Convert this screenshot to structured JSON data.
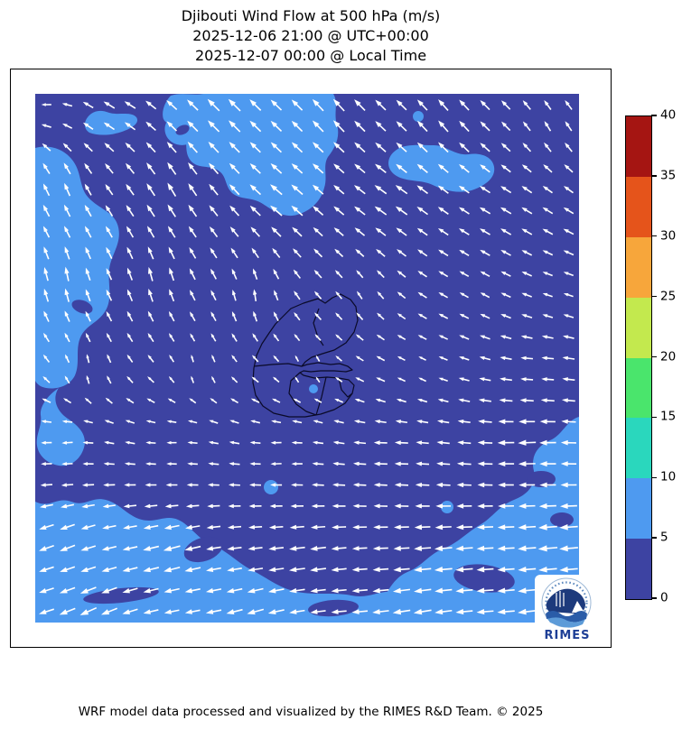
{
  "header": {
    "title_line1": "Djibouti Wind Flow at 500 hPa (m/s)",
    "title_line2": "2025-12-06 21:00 @ UTC+00:00",
    "title_line3": "2025-12-07 00:00 @ Local Time"
  },
  "footer": {
    "caption": "WRF model data processed and visualized by the RIMES R&D Team. © 2025"
  },
  "logo": {
    "brand": "RIMES"
  },
  "chart_data": {
    "type": "heatmap",
    "subtype": "wind-speed-fill-with-quiver-arrows",
    "title": "Djibouti Wind Flow at 500 hPa (m/s)",
    "valid_time_utc": "2025-12-06 21:00 @ UTC+00:00",
    "valid_time_local": "2025-12-07 00:00 @ Local Time",
    "units": "m/s",
    "pressure_level_hPa": 500,
    "region_outline": "Djibouti administrative boundaries with Gulf of Tadjoura",
    "legend_position": "right-colorbar",
    "colorbar": {
      "min": 0,
      "max": 40,
      "ticks": [
        0,
        5,
        10,
        15,
        20,
        25,
        30,
        35,
        40
      ],
      "colors_bottom_to_top": [
        "#3d43a2",
        "#4e9af0",
        "#2ad7bd",
        "#4ae56c",
        "#c3e94e",
        "#f7a63b",
        "#e5541b",
        "#a51512"
      ]
    },
    "speed_classes_visible_on_map": [
      {
        "range_m_s": "0-5",
        "color": "#3d43a2",
        "coverage": "most of domain"
      },
      {
        "range_m_s": "5-10",
        "color": "#4e9af0",
        "coverage": "north-center patch, west strip, south band"
      }
    ],
    "arrow_grid": {
      "cols": 26,
      "rows": 25,
      "arrow_color": "#ffffff"
    },
    "wind_field_control_points_fx_fy_dirdeg_mag": [
      [
        0.02,
        0.02,
        185,
        0.3
      ],
      [
        0.15,
        0.03,
        150,
        0.45
      ],
      [
        0.35,
        0.03,
        135,
        0.65
      ],
      [
        0.55,
        0.03,
        132,
        0.62
      ],
      [
        0.75,
        0.05,
        130,
        0.55
      ],
      [
        0.95,
        0.06,
        120,
        0.38
      ],
      [
        0.05,
        0.18,
        112,
        0.5
      ],
      [
        0.25,
        0.18,
        120,
        0.6
      ],
      [
        0.45,
        0.2,
        140,
        0.6
      ],
      [
        0.65,
        0.2,
        145,
        0.55
      ],
      [
        0.85,
        0.22,
        150,
        0.42
      ],
      [
        0.05,
        0.35,
        100,
        0.55
      ],
      [
        0.22,
        0.35,
        103,
        0.55
      ],
      [
        0.4,
        0.38,
        95,
        0.42
      ],
      [
        0.6,
        0.38,
        120,
        0.28
      ],
      [
        0.8,
        0.38,
        150,
        0.3
      ],
      [
        0.97,
        0.38,
        162,
        0.3
      ],
      [
        0.1,
        0.52,
        95,
        0.26
      ],
      [
        0.3,
        0.52,
        90,
        0.18
      ],
      [
        0.5,
        0.52,
        90,
        0.12
      ],
      [
        0.7,
        0.52,
        150,
        0.18
      ],
      [
        0.92,
        0.52,
        178,
        0.42
      ],
      [
        0.05,
        0.66,
        186,
        0.35
      ],
      [
        0.25,
        0.66,
        183,
        0.3
      ],
      [
        0.45,
        0.68,
        185,
        0.35
      ],
      [
        0.65,
        0.68,
        180,
        0.5
      ],
      [
        0.9,
        0.66,
        183,
        0.7
      ],
      [
        0.05,
        0.85,
        202,
        0.62
      ],
      [
        0.25,
        0.87,
        196,
        0.68
      ],
      [
        0.5,
        0.88,
        188,
        0.62
      ],
      [
        0.75,
        0.88,
        185,
        0.7
      ],
      [
        0.95,
        0.85,
        185,
        0.76
      ],
      [
        0.1,
        0.98,
        205,
        0.7
      ],
      [
        0.4,
        0.98,
        196,
        0.66
      ],
      [
        0.7,
        0.98,
        190,
        0.7
      ],
      [
        0.95,
        0.98,
        188,
        0.76
      ]
    ]
  },
  "map": {
    "background_color": "#3d43a2",
    "patch_color": "#4e9af0",
    "arrow_color": "#ffffff",
    "outline_color": "#0a0a28",
    "patches_5_10": [
      "M 62,22 C 54,28 52,38 60,43 C 70,47 84,46 96,42 C 108,38 116,32 112,26 C 106,19 92,24 82,21 C 74,18 68,18 62,22 Z",
      "M 186,0 L 330,0 C 336,10 330,22 334,34 C 338,48 332,60 324,70 C 318,80 324,92 320,104 C 316,120 304,130 290,134 C 276,138 264,130 252,122 C 240,114 228,118 218,110 C 210,102 212,92 204,86 C 194,78 180,84 172,74 C 164,64 170,52 164,44 C 158,34 146,36 142,28 C 139,20 144,8 150,2 C 162,-2 174,2 186,0 Z",
      "M 150,26 C 140,34 142,48 152,54 C 162,60 176,56 180,46 C 184,36 178,28 168,25 C 162,23 156,22 150,26 Z",
      "M 400,62 C 388,70 388,84 400,91 C 412,98 428,95 440,101 C 452,107 468,111 483,107 C 498,102 510,93 508,81 C 506,69 492,65 480,67 C 465,69 455,57 441,57 C 427,57 409,55 400,62 Z",
      "M 0,60 C 14,56 30,60 40,72 C 52,86 48,102 58,114 C 70,128 88,130 92,148 C 96,166 84,178 82,194 C 80,210 86,226 78,240 C 70,254 56,256 50,270 C 44,284 50,298 44,312 C 38,324 24,328 12,326 C 6,325 2,322 0,318 Z",
      "M 26,326 C 18,338 24,352 36,360 C 48,368 58,378 54,392 C 50,406 38,414 26,412 C 14,410 4,402 2,390 C 0,378 8,368 6,356 C 5,346 14,334 26,326 Z",
      "M 602,358 C 588,362 584,378 570,384 C 556,390 548,402 552,418 C 555,432 546,444 530,450 C 514,456 506,470 492,478 C 478,486 468,498 452,504 C 436,510 428,524 412,530 C 398,536 390,550 384,564 C 380,574 378,580 377,586 L 602,586 Z",
      "M 0,452 C 16,460 24,446 40,452 C 56,458 62,446 78,450 C 94,454 102,468 118,472 C 134,476 144,466 158,472 C 172,478 180,494 196,500 C 212,506 224,520 240,528 C 256,536 270,548 290,552 C 310,556 330,552 350,556 C 370,560 380,550 396,552 C 412,554 420,544 436,546 C 452,548 460,538 476,540 C 492,542 500,532 516,536 C 532,540 540,530 556,532 C 572,534 584,526 602,530 L 602,586 L 0,586 Z"
    ],
    "dots_5_10": [
      [
        424,
        25,
        6
      ],
      [
        261,
        436,
        8
      ],
      [
        456,
        458,
        7
      ],
      [
        308,
        327,
        5
      ]
    ],
    "holes_0_5": [
      [
        186,
        505,
        22,
        13,
        -18
      ],
      [
        95,
        556,
        42,
        8,
        -6
      ],
      [
        330,
        570,
        28,
        9,
        -4
      ],
      [
        497,
        537,
        34,
        15,
        8
      ],
      [
        560,
        427,
        16,
        9,
        0
      ],
      [
        583,
        472,
        13,
        8,
        0
      ],
      [
        163,
        40,
        8,
        5,
        -25
      ],
      [
        52,
        236,
        12,
        7,
        20
      ]
    ],
    "outline_paths": [
      "M 273,248 L 283,238 L 297,232 L 313,227 L 321,232 L 329,226 L 338,222 L 349,228 L 355,236 L 357,251 L 353,264 L 344,276 L 331,284 L 318,288 L 306,292 L 299,297 L 295,302 L 301,300 L 313,298 L 327,300 L 337,299 L 346,302 L 351,306 L 344,308 L 331,307 L 316,307 L 305,308 L 297,307 L 293,309 L 297,312 L 309,315 L 323,314 L 336,315 L 347,317 L 353,323 L 351,332 L 343,343 L 331,350 L 316,355 L 299,358 L 281,358 L 264,354 L 252,346 L 244,334 L 241,320 L 242,304 L 245,290 L 251,277 L 259,265 L 266,255 Z",
      "M 314,238 L 308,254 L 313,270 L 319,279",
      "M 242,302 L 262,300 L 280,299 L 295,302",
      "M 293,309 L 283,318 L 281,332 L 289,344 L 300,352 L 311,356",
      "M 311,356 L 317,336 L 322,314",
      "M 336,315 L 339,328 L 346,336 L 351,332"
    ]
  }
}
